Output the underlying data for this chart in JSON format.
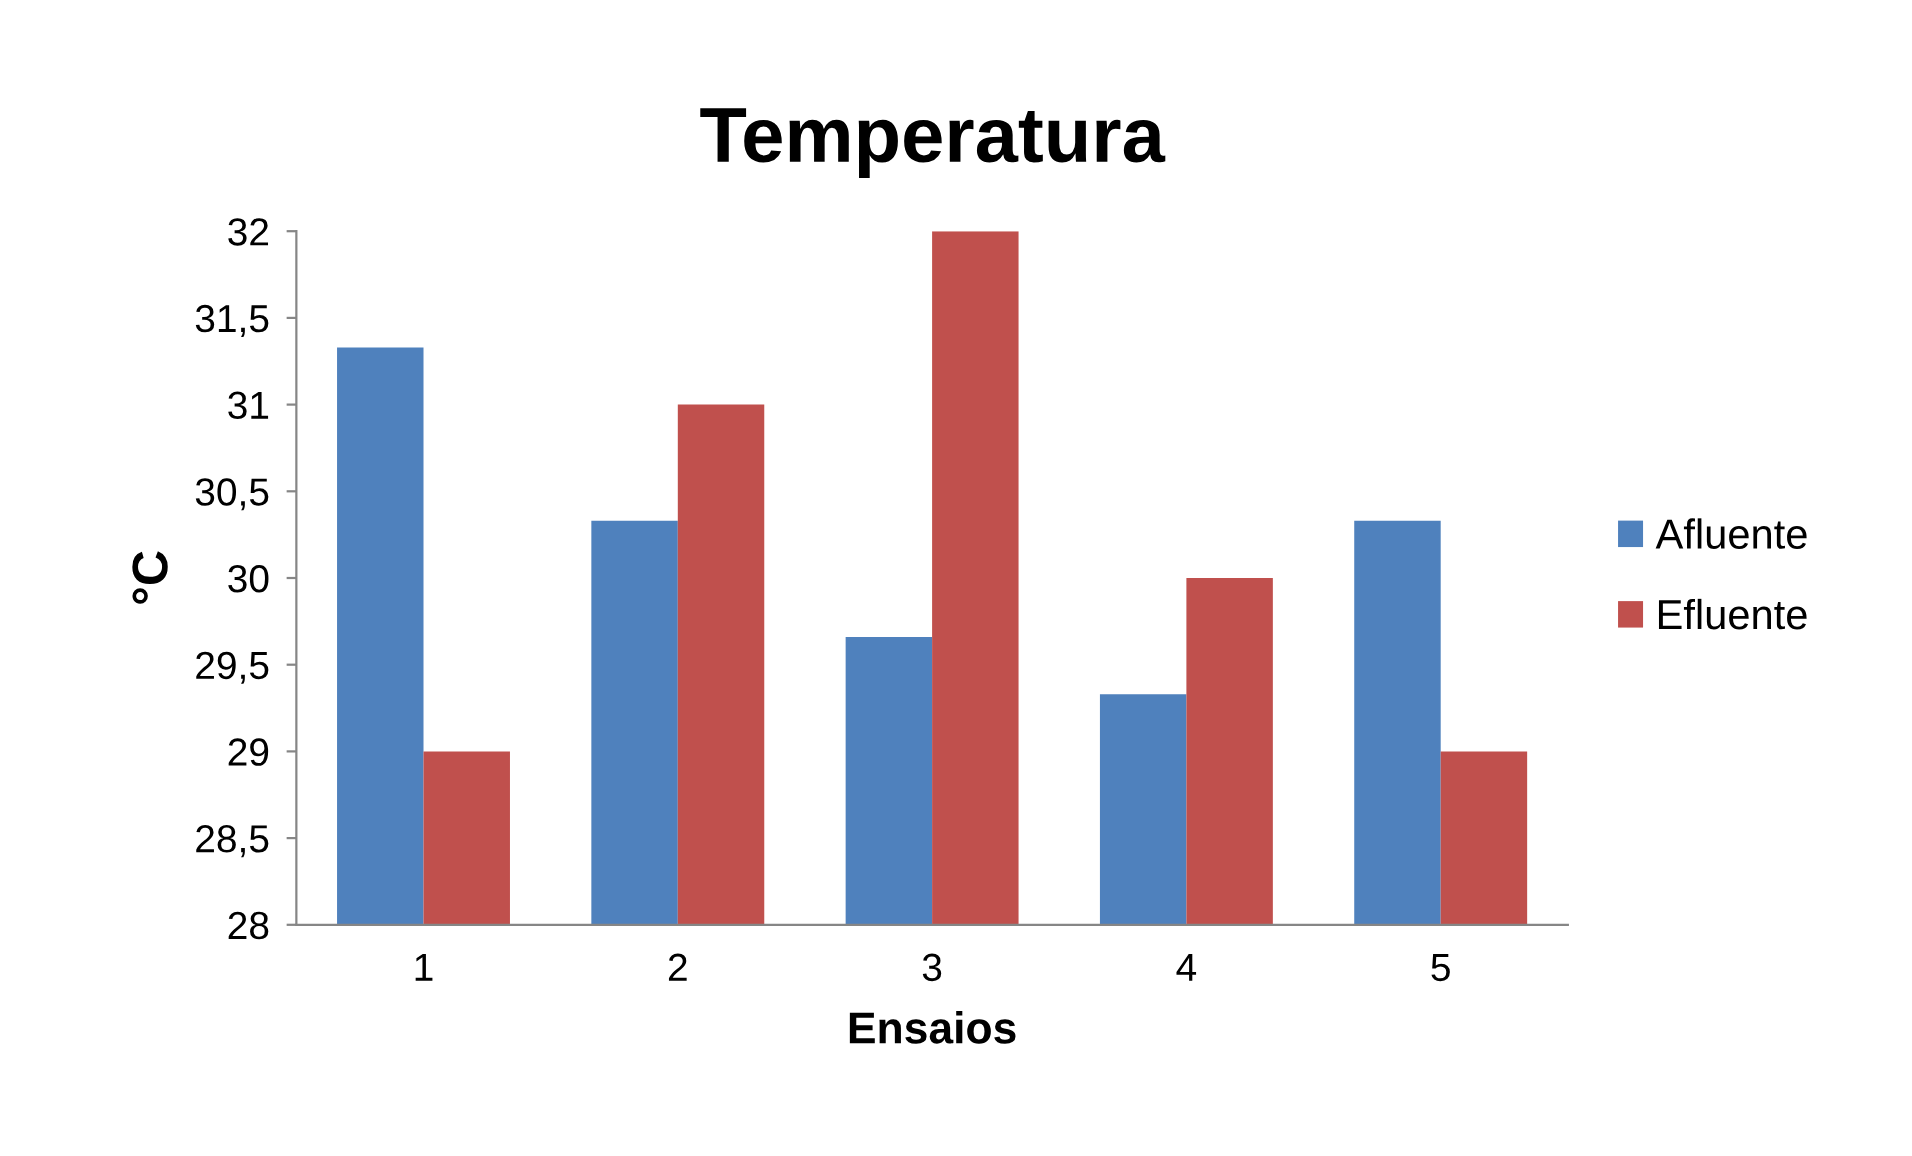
{
  "chart_data": {
    "type": "bar",
    "title": "Temperatura",
    "xlabel": "Ensaios",
    "ylabel": "°C",
    "categories": [
      "1",
      "2",
      "3",
      "4",
      "5"
    ],
    "series": [
      {
        "name": "Afluente",
        "color": "#4f81bd",
        "values": [
          31.33,
          30.33,
          29.66,
          29.33,
          30.33
        ]
      },
      {
        "name": "Efluente",
        "color": "#c0504d",
        "values": [
          29,
          31,
          32,
          30,
          29
        ]
      }
    ],
    "ylim": [
      28,
      32
    ],
    "yticks": [
      {
        "value": 28,
        "label": "28"
      },
      {
        "value": 28.5,
        "label": "28,5"
      },
      {
        "value": 29,
        "label": "29"
      },
      {
        "value": 29.5,
        "label": "29,5"
      },
      {
        "value": 30,
        "label": "30"
      },
      {
        "value": 30.5,
        "label": "30,5"
      },
      {
        "value": 31,
        "label": "31"
      },
      {
        "value": 31.5,
        "label": "31,5"
      },
      {
        "value": 32,
        "label": "32"
      }
    ],
    "legend": "right",
    "grid": false
  }
}
